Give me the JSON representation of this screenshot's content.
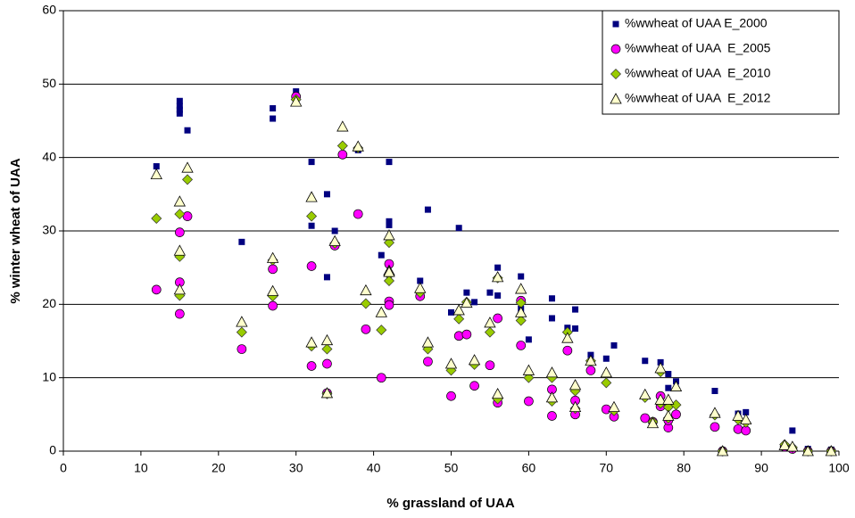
{
  "chart_data": {
    "type": "scatter",
    "x_label": "% grassland of UAA",
    "y_label": "% winter wheat of UAA",
    "xlim": [
      0,
      100
    ],
    "xticks": [
      0,
      10,
      20,
      30,
      40,
      50,
      60,
      70,
      80,
      90,
      100
    ],
    "ylim": [
      0,
      60
    ],
    "yticks": [
      0,
      10,
      20,
      30,
      40,
      50,
      60
    ],
    "grid": true,
    "legend": "top-right",
    "series": [
      {
        "name": "%wwheat of UAA E_2000",
        "color": "#000080",
        "marker": "square",
        "x": [
          12,
          15,
          15,
          15,
          15,
          16,
          23,
          27,
          27,
          30,
          32,
          32,
          34,
          34,
          34,
          35,
          38,
          42,
          42,
          42,
          41,
          46,
          47,
          50,
          51,
          52,
          53,
          55,
          56,
          56,
          59,
          59,
          60,
          63,
          63,
          65,
          66,
          66,
          68,
          71,
          70,
          75,
          77,
          78,
          78,
          79,
          84,
          87,
          88,
          94,
          96,
          99,
          85
        ],
        "values": [
          38.8,
          47.7,
          47,
          46.5,
          46,
          43.7,
          28.5,
          46.7,
          45.3,
          49,
          39.4,
          30.7,
          35,
          23.7,
          8,
          30,
          41,
          39.4,
          31.3,
          30.8,
          26.7,
          23.2,
          32.9,
          18.9,
          30.4,
          21.6,
          20.3,
          21.6,
          25,
          21.2,
          23.8,
          19.4,
          15.2,
          20.8,
          18.1,
          16.8,
          19.3,
          16.7,
          13.1,
          14.4,
          12.6,
          12.3,
          12.1,
          10.5,
          8.6,
          9.5,
          8.2,
          5.1,
          5.3,
          2.8,
          0.3,
          0.2,
          0.1
        ]
      },
      {
        "name": "%wwheat of UAA  E_2005",
        "color": "#ff00ff",
        "marker": "circle",
        "x": [
          12,
          15,
          15,
          15,
          16,
          23,
          27,
          27,
          30,
          32,
          32,
          34,
          34,
          35,
          36,
          38,
          39,
          41,
          42,
          42,
          42,
          46,
          47,
          50,
          51,
          52,
          53,
          55,
          56,
          56,
          59,
          59,
          60,
          63,
          63,
          65,
          66,
          66,
          68,
          70,
          71,
          75,
          76,
          77,
          77,
          78,
          78,
          79,
          84,
          85,
          87,
          88,
          93,
          94,
          96,
          99
        ],
        "values": [
          22,
          29.8,
          23,
          18.7,
          32,
          13.9,
          24.8,
          19.8,
          48.3,
          25.2,
          11.6,
          11.9,
          7.9,
          28,
          40.4,
          32.3,
          16.6,
          10,
          25.5,
          20.4,
          19.9,
          21.1,
          12.2,
          7.5,
          15.7,
          15.9,
          8.9,
          11.7,
          18.1,
          6.6,
          14.4,
          20.5,
          6.8,
          8.4,
          4.8,
          13.7,
          6.9,
          5,
          11,
          5.7,
          4.7,
          4.5,
          4,
          7.5,
          6.1,
          3.2,
          4.2,
          5,
          3.3,
          0,
          3,
          2.8,
          0.6,
          0.3,
          0,
          0
        ]
      },
      {
        "name": "%wwheat of UAA  E_2010",
        "color": "#99cc00",
        "marker": "diamond",
        "x": [
          12,
          15,
          15,
          15,
          16,
          23,
          27,
          27,
          30,
          32,
          32,
          34,
          34,
          35,
          36,
          38,
          39,
          41,
          42,
          42,
          42,
          46,
          47,
          50,
          51,
          52,
          53,
          55,
          56,
          56,
          59,
          59,
          60,
          63,
          63,
          65,
          66,
          66,
          68,
          70,
          71,
          75,
          76,
          77,
          77,
          78,
          78,
          79,
          84,
          85,
          87,
          88,
          93,
          94,
          96,
          99
        ],
        "values": [
          31.7,
          32.3,
          26.5,
          21.2,
          37,
          16.2,
          26,
          21.1,
          47.9,
          32,
          14.3,
          13.9,
          7.8,
          28.3,
          41.6,
          41.3,
          20.1,
          16.5,
          28.4,
          24,
          23.2,
          21.6,
          13.9,
          11,
          18,
          20.3,
          11.8,
          16.2,
          23.6,
          7.1,
          17.8,
          20.2,
          10,
          10,
          6.8,
          16.2,
          8.2,
          5.8,
          12.3,
          9.3,
          5.5,
          7.3,
          4,
          10.8,
          6.5,
          4.5,
          6,
          6.3,
          4.9,
          0,
          4.3,
          3.9,
          0.9,
          0.5,
          0,
          0
        ]
      },
      {
        "name": "%wwheat of UAA  E_2012",
        "color": "#ffffcc",
        "marker": "triangle",
        "x": [
          12,
          15,
          15,
          15,
          16,
          23,
          27,
          27,
          30,
          32,
          32,
          34,
          34,
          35,
          36,
          38,
          39,
          41,
          42,
          42,
          42,
          46,
          47,
          50,
          51,
          52,
          53,
          55,
          56,
          56,
          59,
          59,
          60,
          63,
          63,
          65,
          66,
          66,
          68,
          70,
          71,
          75,
          76,
          77,
          77,
          78,
          78,
          79,
          84,
          85,
          87,
          88,
          93,
          94,
          96,
          99
        ],
        "values": [
          37.7,
          34,
          27.3,
          22,
          38.6,
          17.6,
          26.3,
          21.8,
          47.6,
          34.6,
          14.8,
          15.1,
          7.9,
          28.6,
          44.2,
          41.5,
          21.9,
          18.9,
          29.4,
          24.6,
          24.4,
          22.2,
          14.8,
          11.9,
          19.2,
          20.2,
          12.4,
          17.5,
          23.7,
          7.8,
          22.1,
          18.9,
          11,
          10.7,
          7.3,
          15.4,
          9,
          6,
          12.3,
          10.7,
          6,
          7.7,
          3.8,
          11.3,
          7,
          4.8,
          7,
          8.8,
          5.2,
          0,
          4.8,
          4.3,
          0.8,
          0.6,
          0,
          0
        ]
      }
    ]
  }
}
